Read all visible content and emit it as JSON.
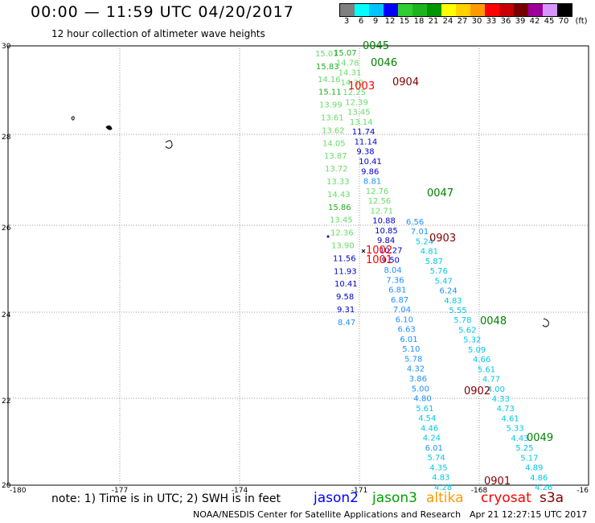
{
  "header": {
    "title": "00:00 — 11:59 UTC 04/20/2017",
    "subtitle": "12 hour collection of altimeter wave heights"
  },
  "colorbar": {
    "swatches": [
      "#7f7f7f",
      "#00ffff",
      "#00c4ff",
      "#0000ff",
      "#32cd32",
      "#1eb41e",
      "#009600",
      "#ffff00",
      "#ffd200",
      "#ff9b00",
      "#ff0000",
      "#c80000",
      "#780000",
      "#9b009b",
      "#d796ff",
      "#000000"
    ],
    "labels": [
      "3",
      "6",
      "9",
      "12",
      "15",
      "18",
      "21",
      "24",
      "27",
      "30",
      "33",
      "36",
      "39",
      "42",
      "45",
      "70",
      "(ft)"
    ]
  },
  "axes": {
    "x_ticks": [
      "-180",
      "-177",
      "-174",
      "-171",
      "-168",
      "-16"
    ],
    "y_ticks": [
      "30",
      "28",
      "26",
      "24",
      "22",
      "20"
    ]
  },
  "passes": [
    {
      "id": "0045",
      "color": "#008000"
    },
    {
      "id": "0046",
      "color": "#008000"
    },
    {
      "id": "0904",
      "color": "#800000"
    },
    {
      "id": "1003",
      "color": "#ff0000"
    },
    {
      "id": "0047",
      "color": "#008000"
    },
    {
      "id": "0903",
      "color": "#800000"
    },
    {
      "id": "1002",
      "color": "#ff0000"
    },
    {
      "id": "1001",
      "color": "#ff0000"
    },
    {
      "id": "0048",
      "color": "#008000"
    },
    {
      "id": "0902",
      "color": "#800000"
    },
    {
      "id": "0049",
      "color": "#008000"
    },
    {
      "id": "0901",
      "color": "#800000"
    }
  ],
  "track_a": [
    [
      "15.01",
      "#66dd66"
    ],
    [
      "15.83",
      "#22aa22"
    ],
    [
      "14.16",
      "#66dd66"
    ],
    [
      "15.11",
      "#22aa22"
    ],
    [
      "13.99",
      "#66dd66"
    ],
    [
      "13.61",
      "#66dd66"
    ],
    [
      "13.62",
      "#66dd66"
    ],
    [
      "14.05",
      "#66dd66"
    ],
    [
      "13.87",
      "#66dd66"
    ],
    [
      "13.72",
      "#66dd66"
    ],
    [
      "13.33",
      "#66dd66"
    ],
    [
      "14.43",
      "#66dd66"
    ],
    [
      "15.86",
      "#22aa22"
    ],
    [
      "13.45",
      "#66dd66"
    ],
    [
      "12.36",
      "#66dd66"
    ],
    [
      "13.90",
      "#66dd66"
    ],
    [
      "11.56",
      "#0000cc"
    ],
    [
      "11.93",
      "#0000cc"
    ],
    [
      "10.41",
      "#0000cc"
    ],
    [
      "9.58",
      "#0000cc"
    ],
    [
      "9.31",
      "#0000cc"
    ],
    [
      "8.47",
      "#1e90ff"
    ]
  ],
  "track_b": [
    [
      "15.07",
      "#22aa22"
    ],
    [
      "14.78",
      "#66dd66"
    ],
    [
      "14.31",
      "#66dd66"
    ],
    [
      "14.30",
      "#66dd66"
    ],
    [
      "12.25",
      "#66dd66"
    ],
    [
      "12.39",
      "#66dd66"
    ],
    [
      "13.45",
      "#66dd66"
    ],
    [
      "13.14",
      "#66dd66"
    ],
    [
      "11.74",
      "#0000cc"
    ],
    [
      "11.14",
      "#0000cc"
    ],
    [
      "9.38",
      "#0000cc"
    ],
    [
      "10.41",
      "#0000cc"
    ],
    [
      "9.86",
      "#0000cc"
    ],
    [
      "8.81",
      "#1e90ff"
    ],
    [
      "12.76",
      "#66dd66"
    ],
    [
      "12.56",
      "#66dd66"
    ],
    [
      "12.71",
      "#66dd66"
    ],
    [
      "10.88",
      "#0000cc"
    ],
    [
      "10.85",
      "#0000cc"
    ],
    [
      "9.84",
      "#0000cc"
    ],
    [
      "10.27",
      "#0000cc"
    ],
    [
      "9.50",
      "#0000cc"
    ],
    [
      "8.04",
      "#1e90ff"
    ],
    [
      "7.36",
      "#1e90ff"
    ],
    [
      "6.81",
      "#1e90ff"
    ],
    [
      "6.87",
      "#1e90ff"
    ],
    [
      "7.04",
      "#1e90ff"
    ],
    [
      "6.10",
      "#1e90ff"
    ],
    [
      "6.63",
      "#1e90ff"
    ],
    [
      "6.01",
      "#1e90ff"
    ],
    [
      "5.10",
      "#1e90ff"
    ],
    [
      "5.78",
      "#1e90ff"
    ],
    [
      "4.32",
      "#1e90ff"
    ],
    [
      "3.86",
      "#1e90ff"
    ],
    [
      "5.00",
      "#1e90ff"
    ],
    [
      "4.80",
      "#1e90ff"
    ],
    [
      "5.61",
      "#00c8e6"
    ],
    [
      "4.54",
      "#00c8e6"
    ],
    [
      "4.46",
      "#00c8e6"
    ],
    [
      "4.24",
      "#00c8e6"
    ],
    [
      "6.01",
      "#1e90ff"
    ],
    [
      "5.74",
      "#00c8e6"
    ],
    [
      "4.35",
      "#00c8e6"
    ],
    [
      "4.83",
      "#00c8e6"
    ],
    [
      "4.28",
      "#00c8e6"
    ]
  ],
  "track_c": [
    [
      "6.56",
      "#1e90ff"
    ],
    [
      "7.01",
      "#1e90ff"
    ],
    [
      "5.24",
      "#00c8e6"
    ],
    [
      "4.81",
      "#00c8e6"
    ],
    [
      "5.87",
      "#00c8e6"
    ],
    [
      "5.76",
      "#00c8e6"
    ],
    [
      "5.47",
      "#00c8e6"
    ],
    [
      "6.24",
      "#1e90ff"
    ],
    [
      "4.83",
      "#00c8e6"
    ],
    [
      "5.55",
      "#00c8e6"
    ],
    [
      "5.78",
      "#00c8e6"
    ],
    [
      "5.62",
      "#00c8e6"
    ],
    [
      "5.32",
      "#00c8e6"
    ],
    [
      "5.09",
      "#00c8e6"
    ],
    [
      "4.66",
      "#00c8e6"
    ],
    [
      "5.61",
      "#00c8e6"
    ],
    [
      "4.77",
      "#00c8e6"
    ],
    [
      "4.00",
      "#00c8e6"
    ],
    [
      "4.33",
      "#00c8e6"
    ],
    [
      "4.73",
      "#00c8e6"
    ],
    [
      "4.61",
      "#00c8e6"
    ],
    [
      "5.33",
      "#00c8e6"
    ],
    [
      "4.43",
      "#00c8e6"
    ],
    [
      "5.25",
      "#00c8e6"
    ],
    [
      "5.17",
      "#00c8e6"
    ],
    [
      "4.89",
      "#00c8e6"
    ],
    [
      "4.86",
      "#00c8e6"
    ],
    [
      "4.26",
      "#00c8e6"
    ]
  ],
  "footer": {
    "note": "note:  1) Time is in UTC;  2) SWH is in feet",
    "satellites": [
      {
        "name": "jason2",
        "color": "#0000ff"
      },
      {
        "name": "jason3",
        "color": "#00a000"
      },
      {
        "name": "altika",
        "color": "#ff9900"
      },
      {
        "name": "cryosat",
        "color": "#ff0000"
      },
      {
        "name": "s3a",
        "color": "#800000"
      }
    ],
    "credits": "NOAA/NESDIS Center for Satellite Applications and Research",
    "timestamp": "Apr 21 12:27:15 UTC 2017"
  }
}
